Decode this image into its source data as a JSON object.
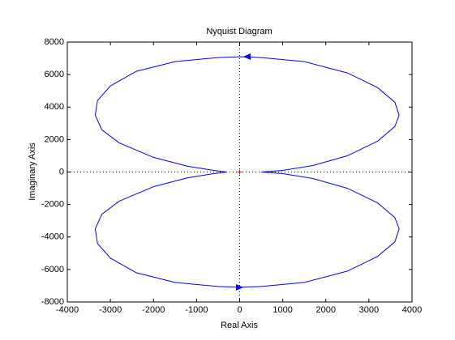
{
  "chart_data": {
    "type": "line",
    "title": "Nyquist Diagram",
    "xlabel": "Real Axis",
    "ylabel": "Imaginary Axis",
    "series": [
      {
        "color": "#0000ff",
        "x": [
          500,
          1000,
          1700,
          2500,
          3200,
          3600,
          3700,
          3600,
          3200,
          2500,
          1500,
          500,
          0,
          -500,
          -1500,
          -2400,
          -3000,
          -3300,
          -3350,
          -3200,
          -2800,
          -2000,
          -1200,
          -600,
          -300,
          -600,
          -1200,
          -2000,
          -2800,
          -3200,
          -3350,
          -3300,
          -3000,
          -2400,
          -1500,
          -500,
          0,
          500,
          1500,
          2500,
          3200,
          3600,
          3700,
          3600,
          3200,
          2500,
          1700,
          1000,
          500
        ],
        "y": [
          0,
          100,
          400,
          1000,
          1900,
          2800,
          3500,
          4300,
          5200,
          6100,
          6800,
          7050,
          7100,
          7050,
          6800,
          6200,
          5300,
          4400,
          3500,
          2600,
          1800,
          900,
          350,
          100,
          0,
          -100,
          -350,
          -900,
          -1800,
          -2600,
          -3500,
          -4400,
          -5300,
          -6200,
          -6800,
          -7050,
          -7100,
          -7050,
          -6800,
          -6100,
          -5200,
          -4300,
          -3500,
          -2800,
          -1900,
          -1000,
          -400,
          -100,
          0
        ]
      }
    ],
    "xlim": [
      -4000,
      4000
    ],
    "xticks": [
      -4000,
      -3000,
      -2000,
      -1000,
      0,
      1000,
      2000,
      3000,
      4000
    ],
    "ylim": [
      -8000,
      8000
    ],
    "yticks": [
      -8000,
      -6000,
      -4000,
      -2000,
      0,
      2000,
      4000,
      6000,
      8000
    ]
  }
}
